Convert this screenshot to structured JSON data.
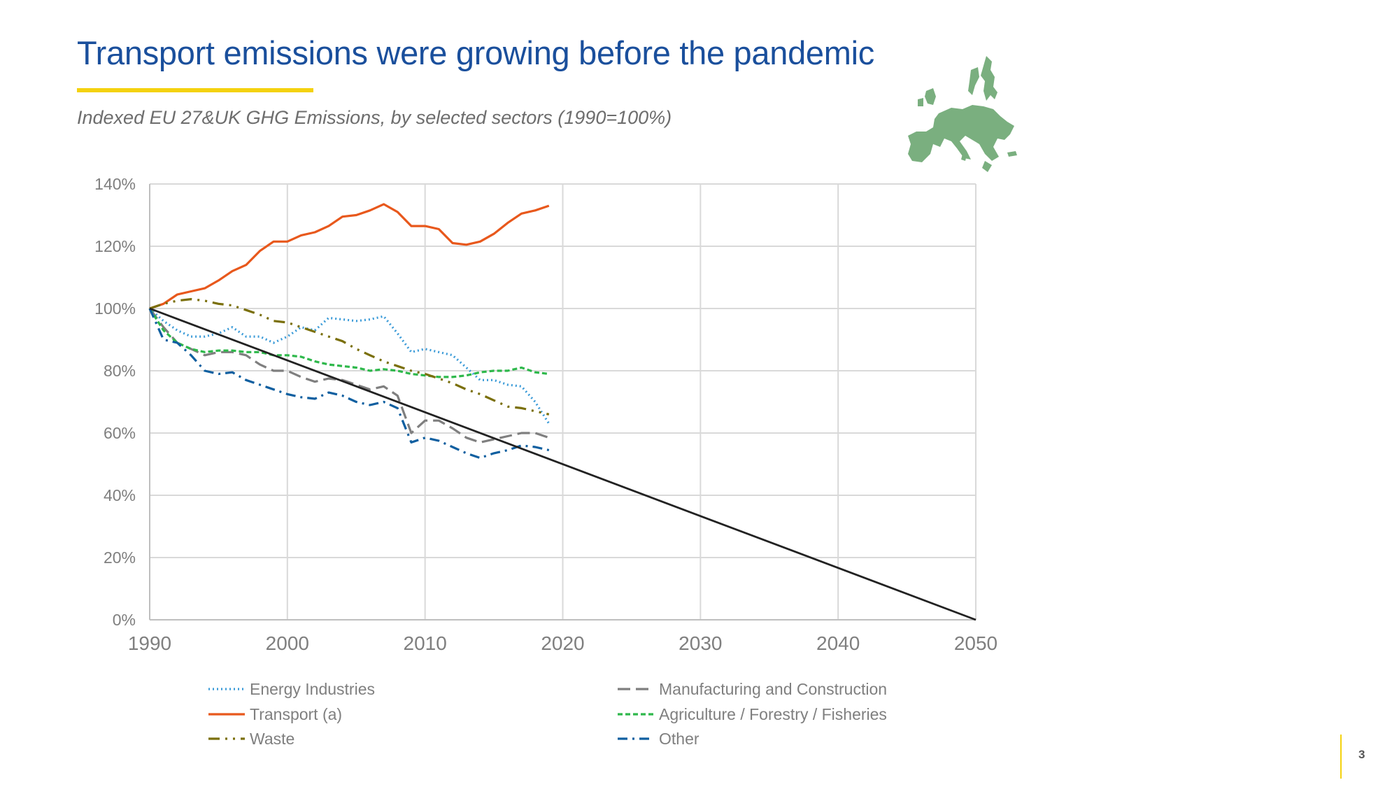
{
  "header": {
    "title": "Transport emissions were growing before the pandemic",
    "subtitle": "Indexed EU 27&UK GHG Emissions, by selected sectors (1990=100%)"
  },
  "logo": {
    "icon": "eu-map-icon",
    "color": "#7aaf7f"
  },
  "page_number": "3",
  "chart_data": {
    "type": "line",
    "x_ticks": [
      "1990",
      "2000",
      "2010",
      "2020",
      "2030",
      "2040",
      "2050"
    ],
    "y_ticks": [
      "0%",
      "20%",
      "40%",
      "60%",
      "80%",
      "100%",
      "120%",
      "140%"
    ],
    "xlim": [
      1990,
      2050
    ],
    "ylim": [
      0,
      140
    ],
    "grid": true,
    "legend_position": "bottom",
    "series": [
      {
        "name": "Energy Industries",
        "color": "#3b9bd8",
        "dash": "dotted",
        "points": [
          [
            1990,
            100
          ],
          [
            1991,
            96
          ],
          [
            1992,
            93
          ],
          [
            1993,
            91
          ],
          [
            1994,
            91
          ],
          [
            1995,
            92
          ],
          [
            1996,
            94
          ],
          [
            1997,
            91
          ],
          [
            1998,
            91
          ],
          [
            1999,
            89
          ],
          [
            2000,
            91
          ],
          [
            2001,
            94
          ],
          [
            2002,
            93
          ],
          [
            2003,
            97
          ],
          [
            2004,
            96.5
          ],
          [
            2005,
            96
          ],
          [
            2006,
            96.5
          ],
          [
            2007,
            97.5
          ],
          [
            2008,
            92
          ],
          [
            2009,
            86
          ],
          [
            2010,
            87
          ],
          [
            2011,
            86
          ],
          [
            2012,
            85
          ],
          [
            2013,
            81
          ],
          [
            2014,
            77
          ],
          [
            2015,
            77
          ],
          [
            2016,
            75.5
          ],
          [
            2017,
            75
          ],
          [
            2018,
            70
          ],
          [
            2019,
            63
          ]
        ]
      },
      {
        "name": "Manufacturing and Construction",
        "color": "#7f7f7f",
        "dash": "longdash",
        "points": [
          [
            1990,
            100
          ],
          [
            1991,
            94
          ],
          [
            1992,
            89
          ],
          [
            1993,
            87
          ],
          [
            1994,
            85
          ],
          [
            1995,
            86
          ],
          [
            1996,
            86
          ],
          [
            1997,
            85
          ],
          [
            1998,
            82
          ],
          [
            1999,
            80
          ],
          [
            2000,
            80
          ],
          [
            2001,
            78
          ],
          [
            2002,
            76.5
          ],
          [
            2003,
            77.5
          ],
          [
            2004,
            77
          ],
          [
            2005,
            75.5
          ],
          [
            2006,
            74
          ],
          [
            2007,
            75
          ],
          [
            2008,
            72
          ],
          [
            2009,
            60
          ],
          [
            2010,
            64
          ],
          [
            2011,
            64
          ],
          [
            2012,
            61.5
          ],
          [
            2013,
            58.5
          ],
          [
            2014,
            57
          ],
          [
            2015,
            58
          ],
          [
            2016,
            59
          ],
          [
            2017,
            60
          ],
          [
            2018,
            60
          ],
          [
            2019,
            58.5
          ]
        ]
      },
      {
        "name": "Transport  (a)",
        "color": "#e8581c",
        "dash": "solid",
        "points": [
          [
            1990,
            100
          ],
          [
            1991,
            101.5
          ],
          [
            1992,
            104.5
          ],
          [
            1993,
            105.5
          ],
          [
            1994,
            106.5
          ],
          [
            1995,
            109
          ],
          [
            1996,
            112
          ],
          [
            1997,
            114
          ],
          [
            1998,
            118.5
          ],
          [
            1999,
            121.5
          ],
          [
            2000,
            121.5
          ],
          [
            2001,
            123.5
          ],
          [
            2002,
            124.5
          ],
          [
            2003,
            126.5
          ],
          [
            2004,
            129.5
          ],
          [
            2005,
            130
          ],
          [
            2006,
            131.5
          ],
          [
            2007,
            133.5
          ],
          [
            2008,
            131
          ],
          [
            2009,
            126.5
          ],
          [
            2010,
            126.5
          ],
          [
            2011,
            125.5
          ],
          [
            2012,
            121
          ],
          [
            2013,
            120.5
          ],
          [
            2014,
            121.5
          ],
          [
            2015,
            124
          ],
          [
            2016,
            127.5
          ],
          [
            2017,
            130.5
          ],
          [
            2018,
            131.5
          ],
          [
            2019,
            133
          ]
        ]
      },
      {
        "name": "Agriculture / Forestry / Fisheries",
        "color": "#2eb84b",
        "dash": "shortdash",
        "points": [
          [
            1990,
            100
          ],
          [
            1991,
            93
          ],
          [
            1992,
            89
          ],
          [
            1993,
            87
          ],
          [
            1994,
            86
          ],
          [
            1995,
            86.5
          ],
          [
            1996,
            86.5
          ],
          [
            1997,
            86
          ],
          [
            1998,
            86
          ],
          [
            1999,
            85
          ],
          [
            2000,
            85
          ],
          [
            2001,
            84.5
          ],
          [
            2002,
            83
          ],
          [
            2003,
            82
          ],
          [
            2004,
            81.5
          ],
          [
            2005,
            81
          ],
          [
            2006,
            80
          ],
          [
            2007,
            80.5
          ],
          [
            2008,
            80
          ],
          [
            2009,
            79
          ],
          [
            2010,
            78.5
          ],
          [
            2011,
            78
          ],
          [
            2012,
            78
          ],
          [
            2013,
            78.5
          ],
          [
            2014,
            79.5
          ],
          [
            2015,
            80
          ],
          [
            2016,
            80
          ],
          [
            2017,
            81
          ],
          [
            2018,
            79.5
          ],
          [
            2019,
            79
          ]
        ]
      },
      {
        "name": "Waste",
        "color": "#7a6f0a",
        "dash": "dashdotdot",
        "points": [
          [
            1990,
            100
          ],
          [
            1991,
            101.5
          ],
          [
            1992,
            102.5
          ],
          [
            1993,
            103
          ],
          [
            1994,
            102.5
          ],
          [
            1995,
            101.5
          ],
          [
            1996,
            101
          ],
          [
            1997,
            99.5
          ],
          [
            1998,
            98
          ],
          [
            1999,
            96
          ],
          [
            2000,
            95.5
          ],
          [
            2001,
            94
          ],
          [
            2002,
            92.5
          ],
          [
            2003,
            91
          ],
          [
            2004,
            89.5
          ],
          [
            2005,
            87
          ],
          [
            2006,
            85
          ],
          [
            2007,
            83
          ],
          [
            2008,
            81.5
          ],
          [
            2009,
            80
          ],
          [
            2010,
            79
          ],
          [
            2011,
            77.5
          ],
          [
            2012,
            76
          ],
          [
            2013,
            74
          ],
          [
            2014,
            72.5
          ],
          [
            2015,
            70.5
          ],
          [
            2016,
            68.5
          ],
          [
            2017,
            68
          ],
          [
            2018,
            67
          ],
          [
            2019,
            66
          ]
        ]
      },
      {
        "name": "Other",
        "color": "#0f5fa0",
        "dash": "dashdot",
        "points": [
          [
            1990,
            100
          ],
          [
            1991,
            90
          ],
          [
            1992,
            89
          ],
          [
            1993,
            85
          ],
          [
            1994,
            80
          ],
          [
            1995,
            79
          ],
          [
            1996,
            79.5
          ],
          [
            1997,
            77
          ],
          [
            1998,
            75.5
          ],
          [
            1999,
            74
          ],
          [
            2000,
            72.5
          ],
          [
            2001,
            71.5
          ],
          [
            2002,
            71
          ],
          [
            2003,
            73
          ],
          [
            2004,
            72
          ],
          [
            2005,
            70
          ],
          [
            2006,
            69
          ],
          [
            2007,
            70
          ],
          [
            2008,
            68
          ],
          [
            2009,
            57
          ],
          [
            2010,
            58.5
          ],
          [
            2011,
            57.5
          ],
          [
            2012,
            55.5
          ],
          [
            2013,
            53.5
          ],
          [
            2014,
            52
          ],
          [
            2015,
            53.5
          ],
          [
            2016,
            54.5
          ],
          [
            2017,
            56
          ],
          [
            2018,
            55.5
          ],
          [
            2019,
            54.5
          ]
        ]
      },
      {
        "name": "",
        "color": "#222222",
        "dash": "solid",
        "points": [
          [
            1990,
            100
          ],
          [
            2050,
            0
          ]
        ]
      }
    ]
  }
}
